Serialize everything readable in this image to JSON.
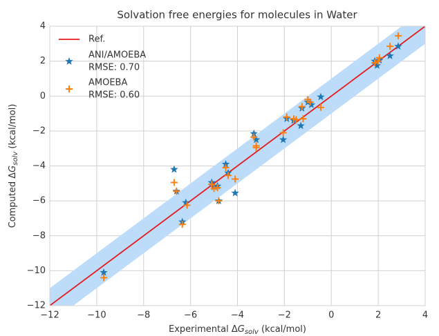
{
  "chart_data": {
    "type": "scatter",
    "title": "Solvation free energies for molecules in Water",
    "x_label": {
      "prefix": "Experimental Δ",
      "var": "G",
      "sub": "solv",
      "suffix": " (kcal/mol)"
    },
    "y_label": {
      "prefix": "Computed Δ",
      "var": "G",
      "sub": "solv",
      "suffix": " (kcal/mol)"
    },
    "xlim": [
      -12,
      4
    ],
    "ylim": [
      -12,
      4
    ],
    "xticks": [
      {
        "value": -12,
        "label": "−12"
      },
      {
        "value": -10,
        "label": "−10"
      },
      {
        "value": -8,
        "label": "−8"
      },
      {
        "value": -6,
        "label": "−6"
      },
      {
        "value": -4,
        "label": "−4"
      },
      {
        "value": -2,
        "label": "−2"
      },
      0,
      2,
      4
    ],
    "yticks": [
      {
        "value": -12,
        "label": "−12"
      },
      {
        "value": -10,
        "label": "−10"
      },
      {
        "value": -8,
        "label": "−8"
      },
      {
        "value": -6,
        "label": "−6"
      },
      {
        "value": -4,
        "label": "−4"
      },
      {
        "value": -2,
        "label": "−2"
      },
      0,
      2,
      4
    ],
    "grid": true,
    "legend": "upper left",
    "reference": {
      "name": "Ref.",
      "color": "#e41a1c"
    },
    "band": {
      "halfwidth": 1,
      "color": "#bcdcfa"
    },
    "series": [
      {
        "name": "ANI/AMOEBA",
        "rmse_label": "RMSE: 0.70",
        "color": "#1f77b4",
        "marker": "star",
        "x": [
          -9.7,
          -6.7,
          -6.6,
          -6.35,
          -6.2,
          -5.1,
          -5.0,
          -4.85,
          -4.8,
          -4.5,
          -4.4,
          -4.1,
          -3.3,
          -3.2,
          -2.05,
          -1.9,
          -1.6,
          -1.3,
          -1.25,
          -1.0,
          -0.85,
          -0.45,
          1.85,
          1.95,
          2.05,
          2.5,
          2.85
        ],
        "values": [
          -10.1,
          -4.2,
          -5.45,
          -7.2,
          -6.1,
          -4.95,
          -5.2,
          -5.15,
          -6.0,
          -3.9,
          -4.4,
          -5.55,
          -2.15,
          -2.5,
          -2.5,
          -1.3,
          -1.4,
          -1.7,
          -0.7,
          -0.35,
          -0.5,
          -0.05,
          2.0,
          1.75,
          2.05,
          2.3,
          2.85
        ]
      },
      {
        "name": "AMOEBA",
        "rmse_label": "RMSE: 0.60",
        "color": "#ff7f0e",
        "marker": "plus",
        "x": [
          -9.7,
          -6.7,
          -6.6,
          -6.35,
          -6.15,
          -5.1,
          -5.0,
          -4.85,
          -4.8,
          -4.5,
          -4.4,
          -4.1,
          -3.3,
          -3.2,
          -3.2,
          -2.05,
          -1.9,
          -1.6,
          -1.5,
          -1.25,
          -1.2,
          -1.0,
          -0.9,
          -0.45,
          1.85,
          2.0,
          2.05,
          2.5,
          2.85
        ],
        "values": [
          -10.4,
          -4.95,
          -5.45,
          -7.35,
          -6.25,
          -5.05,
          -5.3,
          -5.25,
          -6.0,
          -4.1,
          -4.55,
          -4.75,
          -2.35,
          -2.95,
          -2.85,
          -2.1,
          -1.2,
          -1.3,
          -1.35,
          -0.6,
          -1.3,
          -0.2,
          -0.35,
          -0.65,
          1.9,
          2.0,
          2.2,
          2.85,
          3.45
        ]
      }
    ]
  }
}
